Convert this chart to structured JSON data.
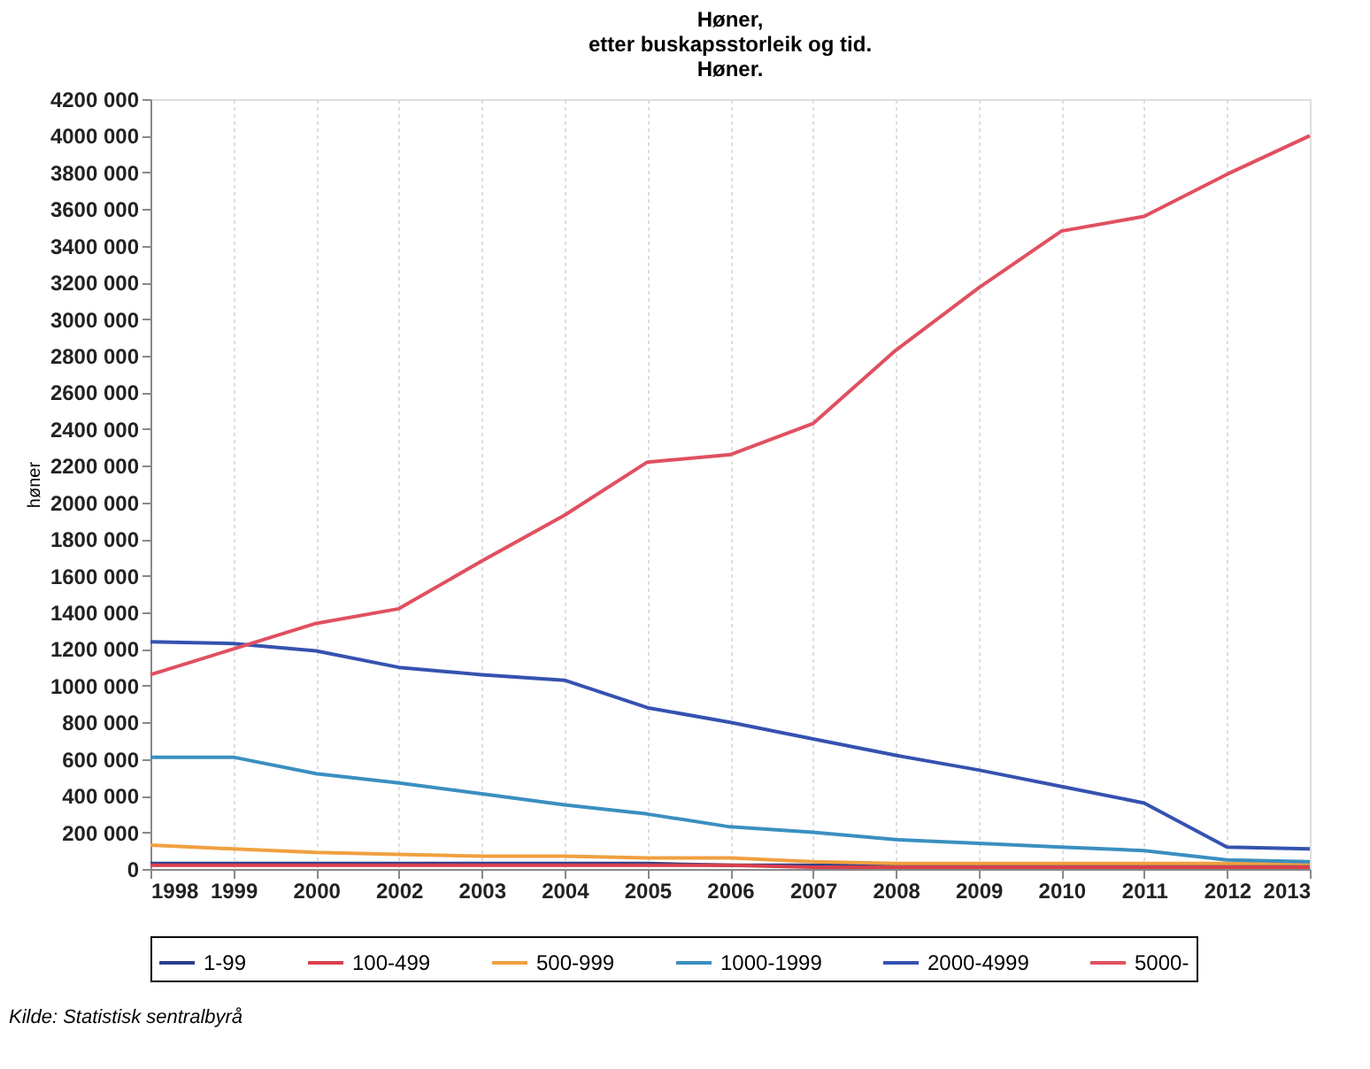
{
  "chart_data": {
    "type": "line",
    "title": "Høner,\netter buskapsstorleik og tid.\nHøner.",
    "ylabel": "høner",
    "categories": [
      "1998",
      "1999",
      "2000",
      "2002",
      "2003",
      "2004",
      "2005",
      "2006",
      "2007",
      "2008",
      "2009",
      "2010",
      "2011",
      "2012",
      "2013"
    ],
    "series": [
      {
        "name": "1-99",
        "color": "#2b3f8f",
        "values": [
          30000,
          30000,
          30000,
          30000,
          30000,
          30000,
          30000,
          20000,
          20000,
          20000,
          20000,
          20000,
          20000,
          20000,
          20000
        ]
      },
      {
        "name": "100-499",
        "color": "#d8404c",
        "values": [
          20000,
          20000,
          20000,
          20000,
          20000,
          20000,
          20000,
          20000,
          10000,
          10000,
          10000,
          10000,
          10000,
          10000,
          10000
        ]
      },
      {
        "name": "500-999",
        "color": "#f0a040",
        "values": [
          130000,
          110000,
          90000,
          80000,
          70000,
          70000,
          60000,
          60000,
          40000,
          30000,
          30000,
          30000,
          30000,
          30000,
          30000
        ]
      },
      {
        "name": "1000-1999",
        "color": "#3a8fc0",
        "values": [
          610000,
          610000,
          520000,
          470000,
          410000,
          350000,
          300000,
          230000,
          200000,
          160000,
          140000,
          120000,
          100000,
          50000,
          40000
        ]
      },
      {
        "name": "2000-4999",
        "color": "#3552b0",
        "values": [
          1240000,
          1230000,
          1190000,
          1100000,
          1060000,
          1030000,
          880000,
          800000,
          710000,
          620000,
          540000,
          450000,
          360000,
          120000,
          110000
        ]
      },
      {
        "name": "5000-",
        "color": "#e05060",
        "values": [
          1060000,
          1200000,
          1340000,
          1420000,
          1680000,
          1930000,
          2220000,
          2260000,
          2430000,
          2830000,
          3170000,
          3480000,
          3560000,
          3790000,
          4000000
        ]
      }
    ],
    "ylim": [
      0,
      4200000
    ],
    "yticks": [
      0,
      {
        "value": 200000,
        "label": "200 000"
      },
      {
        "value": 400000,
        "label": "400 000"
      },
      {
        "value": 600000,
        "label": "600 000"
      },
      {
        "value": 800000,
        "label": "800 000"
      },
      {
        "value": 1000000,
        "label": "1000 000"
      },
      {
        "value": 1200000,
        "label": "1200 000"
      },
      {
        "value": 1400000,
        "label": "1400 000"
      },
      {
        "value": 1600000,
        "label": "1600 000"
      },
      {
        "value": 1800000,
        "label": "1800 000"
      },
      {
        "value": 2000000,
        "label": "2000 000"
      },
      {
        "value": 2200000,
        "label": "2200 000"
      },
      {
        "value": 2400000,
        "label": "2400 000"
      },
      {
        "value": 2600000,
        "label": "2600 000"
      },
      {
        "value": 2800000,
        "label": "2800 000"
      },
      {
        "value": 3000000,
        "label": "3000 000"
      },
      {
        "value": 3200000,
        "label": "3200 000"
      },
      {
        "value": 3400000,
        "label": "3400 000"
      },
      {
        "value": 3600000,
        "label": "3600 000"
      },
      {
        "value": 3800000,
        "label": "3800 000"
      },
      {
        "value": 4000000,
        "label": "4000 000"
      },
      {
        "value": 4200000,
        "label": "4200 000"
      }
    ],
    "grid": "x",
    "legend": "bottom",
    "marker": "none",
    "line_style": "solid",
    "annotations": [
      "Kilde: Statistisk sentralbyrå"
    ]
  }
}
